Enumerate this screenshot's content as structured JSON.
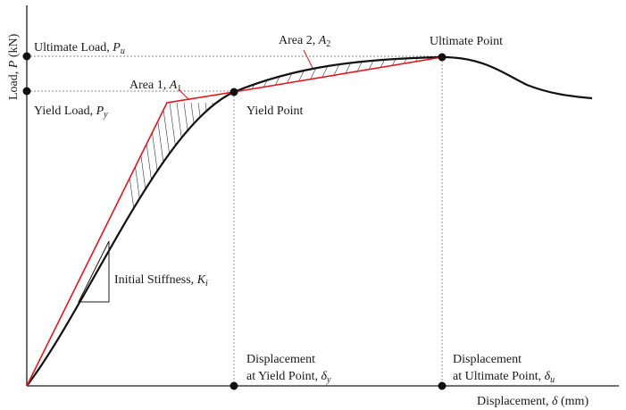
{
  "labels": {
    "y_axis": {
      "main": "Load, ",
      "sym": "P",
      "unit": " (kN)"
    },
    "x_axis": {
      "main": "Displacement, ",
      "sym": "δ",
      "unit": " (mm)"
    },
    "ultimate_load": {
      "main": "Ultimate Load, ",
      "sym": "P",
      "sub": "u"
    },
    "yield_load": {
      "main": "Yield Load, ",
      "sym": "P",
      "sub": "y"
    },
    "area1": {
      "main": "Area 1, ",
      "sym": "A",
      "sub": "1"
    },
    "area2": {
      "main": "Area 2, ",
      "sym": "A",
      "sub": "2"
    },
    "yield_point": "Yield Point",
    "ultimate_point": "Ultimate Point",
    "initial_stiffness": {
      "main": "Initial Stiffness, ",
      "sym": "K",
      "sub": "i"
    },
    "disp_yield": {
      "line1": "Displacement",
      "line2": "at Yield Point, ",
      "sym": "δ",
      "sub": "y"
    },
    "disp_ultimate": {
      "line1": "Displacement",
      "line2": "at Ultimate Point, ",
      "sym": "δ",
      "sub": "u"
    }
  },
  "colors": {
    "curve": "#111111",
    "bilinear": "#e8141c",
    "guides": "#8a8a8a"
  }
}
